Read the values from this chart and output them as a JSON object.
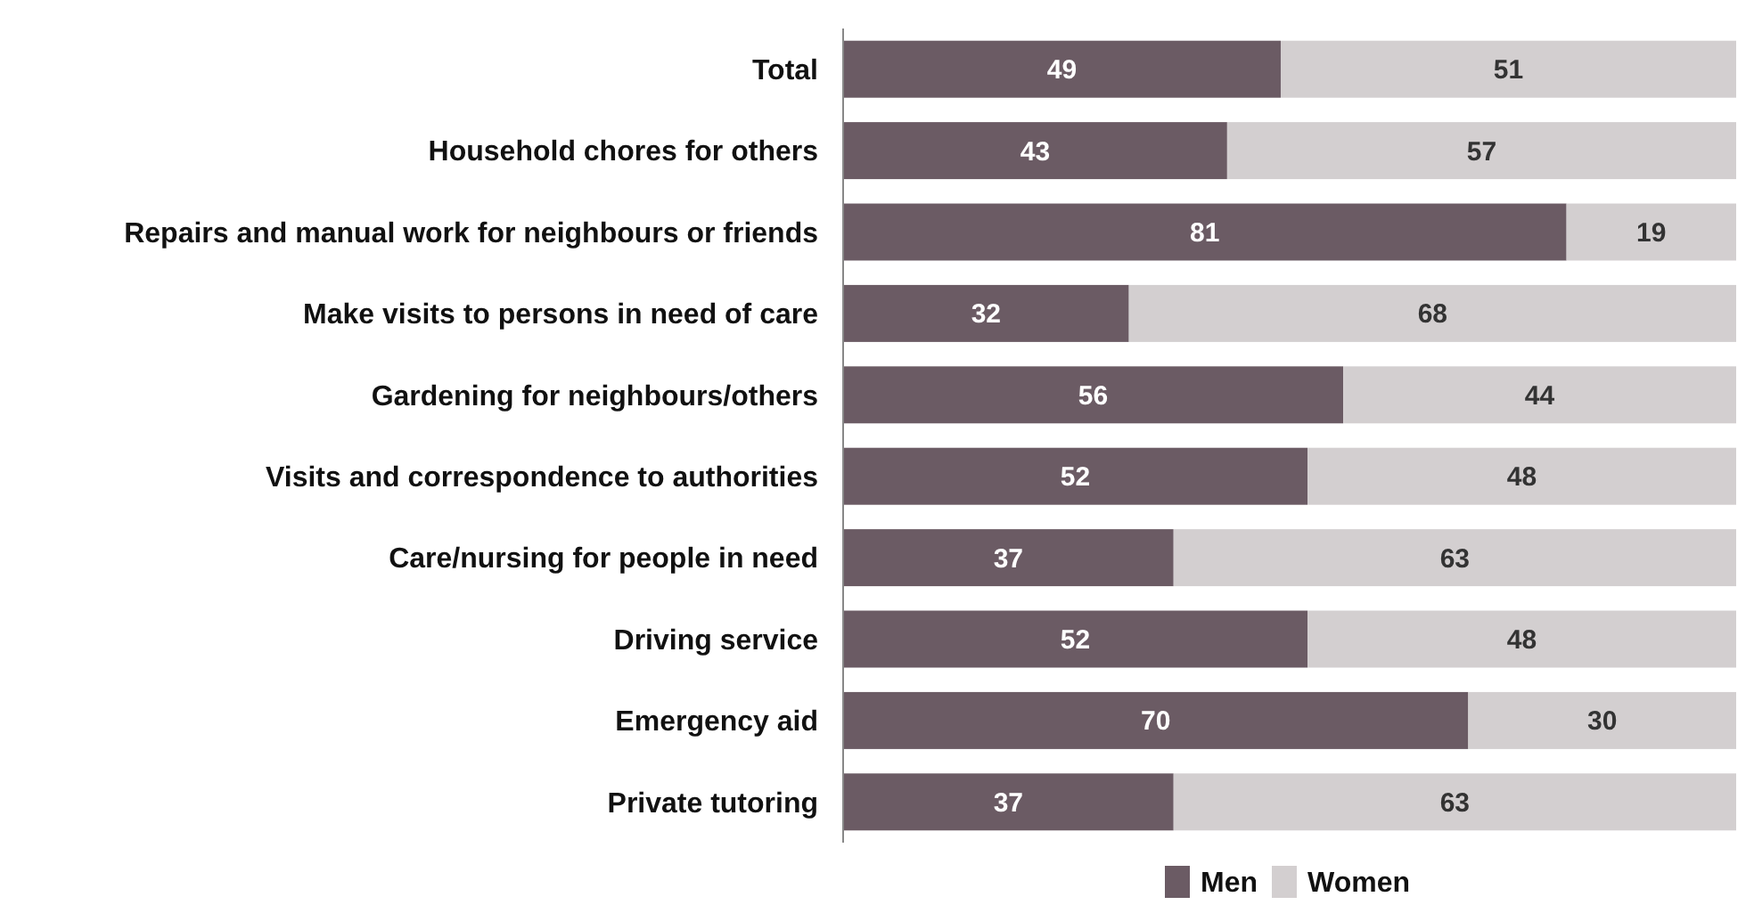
{
  "chart_data": {
    "type": "bar",
    "orientation": "horizontal",
    "stacked": true,
    "data_labels": true,
    "legend": "bottom",
    "xlim": [
      0,
      100
    ],
    "categories": [
      "Total",
      "Household chores for others",
      "Repairs and manual work for neighbours or friends",
      "Make visits to persons in need of care",
      "Gardening for neighbours/others",
      "Visits and correspondence to authorities",
      "Care/nursing for people in need",
      "Driving service",
      "Emergency aid",
      "Private tutoring"
    ],
    "series": [
      {
        "name": "Men",
        "color": "#6b5b64",
        "values": [
          49,
          43,
          81,
          32,
          56,
          52,
          37,
          52,
          70,
          37
        ]
      },
      {
        "name": "Women",
        "color": "#d3cfd0",
        "values": [
          51,
          57,
          19,
          68,
          44,
          48,
          63,
          48,
          30,
          63
        ]
      }
    ]
  }
}
